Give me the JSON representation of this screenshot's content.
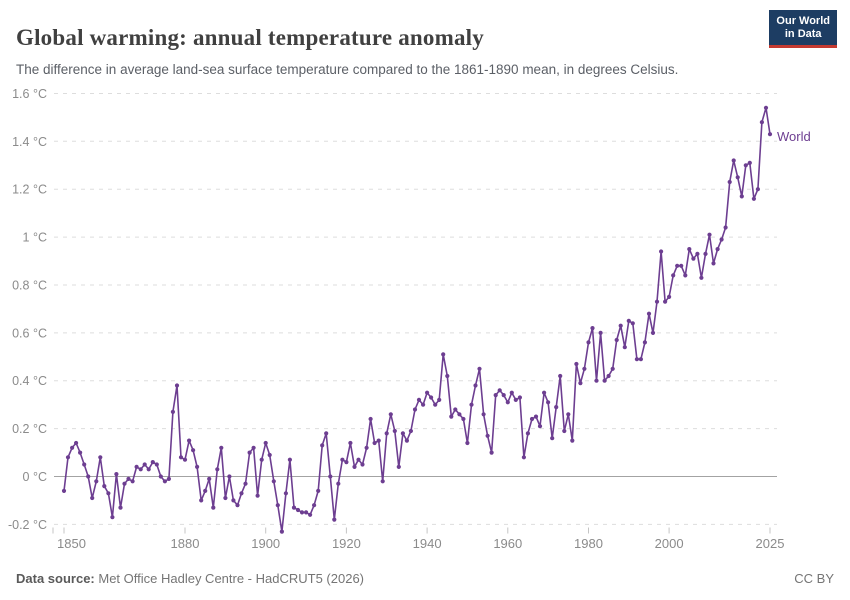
{
  "header": {
    "title": "Global warming: annual temperature anomaly",
    "subtitle": "The difference in average land-sea surface temperature compared to the 1861-1890 mean, in degrees Celsius.",
    "logo": {
      "line1": "Our World",
      "line2": "in Data"
    }
  },
  "footer": {
    "source_label": "Data source:",
    "source_value": " Met Office Hadley Centre - HadCRUT5 (2026)",
    "license": "CC BY"
  },
  "colors": {
    "line": "#6d3e91",
    "grid_dashed": "#dddddd",
    "zero_line": "#a3a3a3",
    "tick_mark": "#c4c4c4",
    "axis_text": "#8b8b8b",
    "title_text": "#404040",
    "subtitle_text": "#5b5f66",
    "footer_label": "#5a5a5a",
    "footer_text": "#757575",
    "logo_bg": "#1d3d63",
    "logo_accent": "#c43a31"
  },
  "chart_data": {
    "type": "line",
    "title": "Global warming: annual temperature anomaly",
    "subtitle": "The difference in average land-sea surface temperature compared to the 1861-1890 mean, in degrees Celsius.",
    "series_name": "World",
    "unit": "°C",
    "x_start": 1850,
    "x_end": 2025,
    "xlim": [
      1848,
      2027
    ],
    "ylim": [
      -0.25,
      1.62
    ],
    "grid": "horizontal dashed, solid zero line",
    "legend_position": "end-of-line label",
    "xticks": [
      1850,
      1880,
      1900,
      1920,
      1940,
      1960,
      1980,
      2000,
      2025
    ],
    "yticks": [
      -0.2,
      0,
      0.2,
      0.4,
      0.6,
      0.8,
      1,
      1.2,
      1.4,
      1.6
    ],
    "ytick_labels": [
      "-0.2 °C",
      "0 °C",
      "0.2 °C",
      "0.4 °C",
      "0.6 °C",
      "0.8 °C",
      "1 °C",
      "1.2 °C",
      "1.4 °C",
      "1.6 °C"
    ],
    "values": [
      -0.06,
      0.08,
      0.12,
      0.14,
      0.1,
      0.05,
      0.0,
      -0.09,
      -0.02,
      0.08,
      -0.04,
      -0.07,
      -0.17,
      0.01,
      -0.13,
      -0.03,
      -0.01,
      -0.02,
      0.04,
      0.03,
      0.05,
      0.03,
      0.06,
      0.05,
      0.0,
      -0.02,
      -0.01,
      0.27,
      0.38,
      0.08,
      0.07,
      0.15,
      0.11,
      0.04,
      -0.1,
      -0.06,
      -0.01,
      -0.13,
      0.03,
      0.12,
      -0.09,
      0.0,
      -0.1,
      -0.12,
      -0.07,
      -0.03,
      0.1,
      0.12,
      -0.08,
      0.07,
      0.14,
      0.09,
      -0.02,
      -0.12,
      -0.23,
      -0.07,
      0.07,
      -0.13,
      -0.14,
      -0.15,
      -0.15,
      -0.16,
      -0.12,
      -0.06,
      0.13,
      0.18,
      0.0,
      -0.18,
      -0.03,
      0.07,
      0.06,
      0.14,
      0.04,
      0.07,
      0.05,
      0.12,
      0.24,
      0.14,
      0.15,
      -0.02,
      0.18,
      0.26,
      0.19,
      0.04,
      0.18,
      0.15,
      0.19,
      0.28,
      0.32,
      0.3,
      0.35,
      0.33,
      0.3,
      0.32,
      0.51,
      0.42,
      0.25,
      0.28,
      0.26,
      0.24,
      0.14,
      0.3,
      0.38,
      0.45,
      0.26,
      0.17,
      0.1,
      0.34,
      0.36,
      0.34,
      0.31,
      0.35,
      0.32,
      0.33,
      0.08,
      0.18,
      0.24,
      0.25,
      0.21,
      0.35,
      0.31,
      0.16,
      0.29,
      0.42,
      0.19,
      0.26,
      0.15,
      0.47,
      0.39,
      0.45,
      0.56,
      0.62,
      0.4,
      0.6,
      0.4,
      0.42,
      0.45,
      0.57,
      0.63,
      0.54,
      0.65,
      0.64,
      0.49,
      0.49,
      0.56,
      0.68,
      0.6,
      0.73,
      0.94,
      0.73,
      0.75,
      0.84,
      0.88,
      0.88,
      0.84,
      0.95,
      0.91,
      0.93,
      0.83,
      0.93,
      1.01,
      0.89,
      0.95,
      0.99,
      1.04,
      1.23,
      1.32,
      1.25,
      1.17,
      1.3,
      1.31,
      1.16,
      1.2,
      1.48,
      1.54,
      1.43
    ]
  }
}
